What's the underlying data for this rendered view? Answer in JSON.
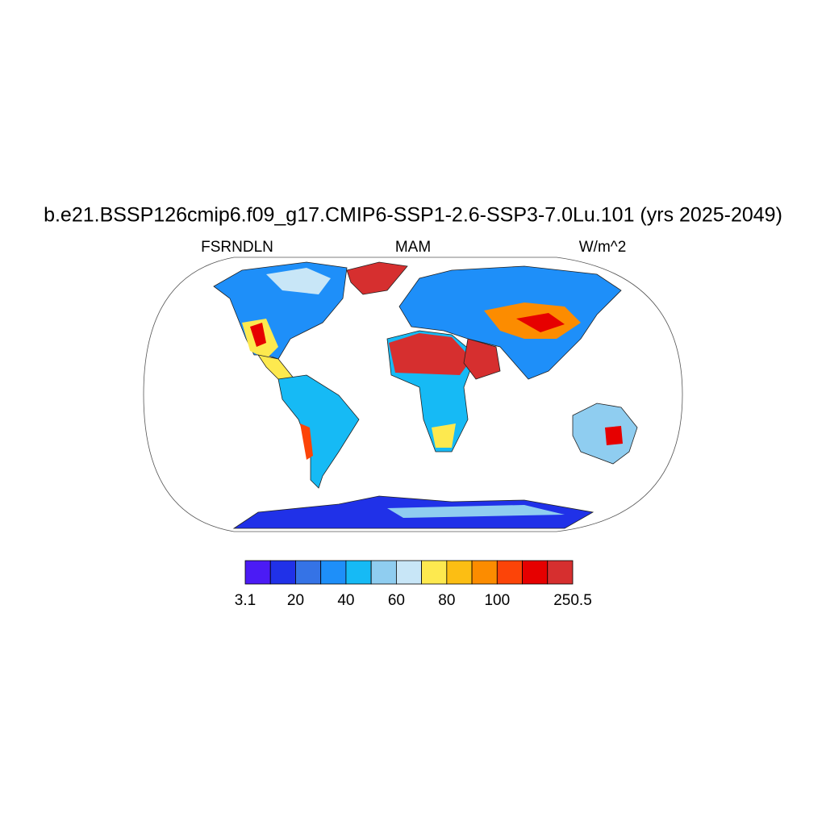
{
  "title": "b.e21.BSSP126cmip6.f09_g17.CMIP6-SSP1-2.6-SSP3-7.0Lu.101 (yrs 2025-2049)",
  "subtitle_left": "FSRNDLN",
  "subtitle_center": "MAM",
  "subtitle_right": "W/m^2",
  "colorbar": {
    "colors": [
      "#4b1bf5",
      "#2031e8",
      "#3573e6",
      "#1e8ff9",
      "#16baf5",
      "#8fcdf0",
      "#c8e6f7",
      "#fde94f",
      "#fcbe13",
      "#fc8c00",
      "#fc4408",
      "#e60000",
      "#d62f2f"
    ],
    "ticks": [
      3.1,
      20,
      40,
      60,
      80,
      100,
      250.5
    ]
  }
}
